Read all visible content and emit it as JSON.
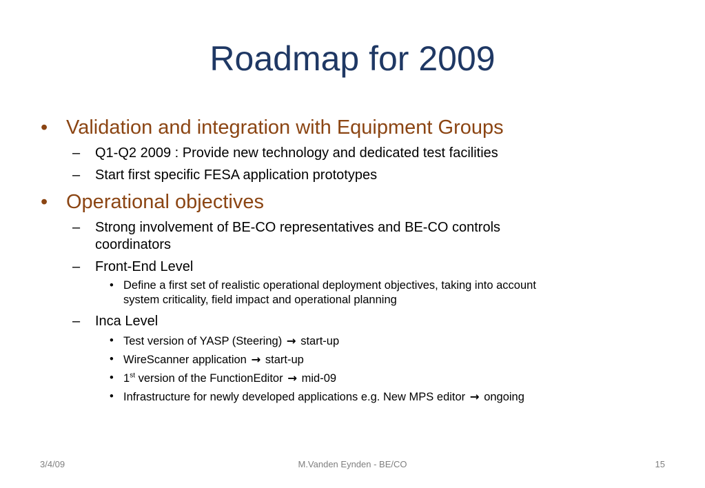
{
  "slide": {
    "title": "Roadmap for 2009",
    "section1": {
      "heading": "Validation and integration with Equipment Groups",
      "items": [
        "Q1-Q2 2009 : Provide new technology and dedicated test facilities",
        "Start first specific FESA application prototypes"
      ]
    },
    "section2": {
      "heading": "Operational objectives",
      "item1_line1": "Strong involvement of BE-CO representatives  and BE-CO controls",
      "item1_line2": "coordinators",
      "item2": "Front-End Level",
      "item2_sub_line1": "Define a first set of realistic operational deployment objectives, taking into account",
      "item2_sub_line2": "system criticality, field impact and operational planning",
      "item3": "Inca Level",
      "inca": {
        "i1_text": "Test version of YASP (Steering)",
        "i1_result": "start-up",
        "i2_text": "WireScanner application",
        "i2_result": "start-up",
        "i3_prefix": "1",
        "i3_sup": "st",
        "i3_text": "version of the FunctionEditor",
        "i3_result": "mid-09",
        "i4_text": "Infrastructure for newly developed applications e.g. New MPS editor",
        "i4_result": "ongoing"
      }
    },
    "bullet_l1": "•",
    "bullet_l2": "–",
    "bullet_l3": "•",
    "arrow": "→"
  },
  "footer": {
    "date": "3/4/09",
    "author": "M.Vanden Eynden - BE/CO",
    "page": "15"
  },
  "colors": {
    "title": "#1f3864",
    "heading": "#8b4513",
    "body": "#000000",
    "footer": "#7f7f7f"
  }
}
